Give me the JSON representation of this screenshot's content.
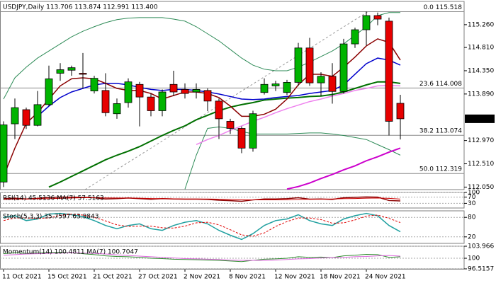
{
  "chart_data": [
    {
      "type": "candlestick",
      "title": "USDJPY,Daily  113.706 113.874 112.991 113.400",
      "categories": [
        "11 Oct 2021",
        null,
        null,
        null,
        "15 Oct 2021",
        null,
        null,
        null,
        "21 Oct 2021",
        null,
        null,
        null,
        "27 Oct 2021",
        null,
        null,
        null,
        "2 Nov 2021",
        null,
        null,
        null,
        "8 Nov 2021",
        null,
        null,
        null,
        "12 Nov 2021",
        null,
        null,
        null,
        "18 Nov 2021",
        null,
        null,
        null,
        "24 Nov 2021",
        null,
        null,
        null
      ],
      "open": [
        112.15,
        113.3,
        113.58,
        113.27,
        113.68,
        114.3,
        114.36,
        114.3,
        113.95,
        113.96,
        113.5,
        113.72,
        114.08,
        113.83,
        113.56,
        114.08,
        113.98,
        113.93,
        113.96,
        113.75,
        113.35,
        113.21,
        112.82,
        113.92,
        114.05,
        113.92,
        114.12,
        114.8,
        114.11,
        114.24,
        113.94,
        114.88,
        115.16,
        115.44,
        115.33,
        113.706
      ],
      "high": [
        113.35,
        113.8,
        113.62,
        113.95,
        114.45,
        114.5,
        114.45,
        114.7,
        114.25,
        114.3,
        113.8,
        114.2,
        114.13,
        113.9,
        113.98,
        114.35,
        114.1,
        114.1,
        114.0,
        113.8,
        113.4,
        113.25,
        113.56,
        114.2,
        114.15,
        114.17,
        114.9,
        115.0,
        114.32,
        114.5,
        114.98,
        115.2,
        115.52,
        115.5,
        115.4,
        113.874
      ],
      "low": [
        112.05,
        113.0,
        113.2,
        113.25,
        113.65,
        114.15,
        114.25,
        114.0,
        113.9,
        113.45,
        113.4,
        113.62,
        113.25,
        113.45,
        113.45,
        113.85,
        113.8,
        113.8,
        113.55,
        113.0,
        113.1,
        112.72,
        112.75,
        113.88,
        113.95,
        113.87,
        114.05,
        114.05,
        113.85,
        113.7,
        113.9,
        114.8,
        114.85,
        115.25,
        113.07,
        112.991
      ],
      "close": [
        113.28,
        113.62,
        113.27,
        113.68,
        114.19,
        114.37,
        114.41,
        114.28,
        114.2,
        113.52,
        113.7,
        114.13,
        113.83,
        113.56,
        113.93,
        113.93,
        113.9,
        113.98,
        113.75,
        113.4,
        113.21,
        112.82,
        113.5,
        114.08,
        114.09,
        114.12,
        114.8,
        114.11,
        114.24,
        113.94,
        114.88,
        115.16,
        115.44,
        115.37,
        113.35,
        113.4
      ],
      "up_color": "#00b400",
      "down_color": "#e60000",
      "series": [
        {
          "color": "#2e8b57",
          "width": 1,
          "values": [
            113.79,
            114.21,
            114.42,
            114.6,
            114.74,
            114.88,
            115.02,
            115.13,
            115.22,
            115.3,
            115.36,
            115.39,
            115.4,
            115.4,
            115.4,
            115.37,
            115.33,
            115.22,
            115.08,
            114.94,
            114.77,
            114.6,
            114.46,
            114.38,
            114.35,
            114.35,
            114.42,
            114.52,
            114.63,
            114.74,
            114.88,
            115.05,
            115.22,
            115.44,
            115.5,
            115.5
          ]
        },
        {
          "color": "#2e8b57",
          "width": 1,
          "values": [
            null,
            null,
            null,
            null,
            null,
            null,
            null,
            null,
            null,
            null,
            null,
            null,
            null,
            null,
            null,
            null,
            112.01,
            112.68,
            113.21,
            113.24,
            113.21,
            113.15,
            113.1,
            113.1,
            113.1,
            113.1,
            113.11,
            113.12,
            113.12,
            113.1,
            113.07,
            113.03,
            112.99,
            112.89,
            112.79,
            112.68
          ]
        },
        {
          "color": "#cc00cc",
          "width": 2,
          "values": [
            null,
            null,
            null,
            null,
            null,
            null,
            null,
            null,
            null,
            null,
            null,
            null,
            null,
            null,
            null,
            null,
            null,
            null,
            null,
            null,
            null,
            null,
            null,
            null,
            null,
            112.01,
            112.06,
            112.13,
            112.22,
            112.3,
            112.39,
            112.47,
            112.57,
            112.65,
            112.74,
            112.82
          ]
        },
        {
          "color": "#ee82ee",
          "width": 1.5,
          "values": [
            null,
            null,
            null,
            null,
            null,
            null,
            null,
            null,
            null,
            null,
            null,
            null,
            null,
            null,
            null,
            null,
            null,
            112.89,
            112.99,
            113.07,
            113.17,
            113.26,
            113.35,
            113.43,
            113.52,
            113.6,
            113.67,
            113.74,
            113.79,
            113.85,
            113.9,
            113.96,
            114.0,
            114.05,
            114.06,
            114.05
          ]
        },
        {
          "color": "#007000",
          "width": 2,
          "values": [
            null,
            null,
            null,
            null,
            112.05,
            112.15,
            112.26,
            112.37,
            112.48,
            112.59,
            112.68,
            112.76,
            112.85,
            112.96,
            113.07,
            113.17,
            113.26,
            113.38,
            113.47,
            113.56,
            113.63,
            113.68,
            113.72,
            113.77,
            113.79,
            113.81,
            113.82,
            113.84,
            113.85,
            113.88,
            113.93,
            114.0,
            114.07,
            114.13,
            114.13,
            114.1
          ]
        },
        {
          "color": "#0000cc",
          "width": 1.5,
          "values": [
            null,
            null,
            null,
            113.45,
            113.65,
            113.82,
            113.93,
            114.0,
            114.07,
            114.1,
            114.1,
            114.07,
            114.02,
            113.98,
            113.96,
            113.98,
            113.98,
            113.96,
            113.93,
            113.89,
            113.84,
            113.79,
            113.78,
            113.79,
            113.82,
            113.84,
            113.86,
            113.9,
            113.93,
            113.96,
            114.07,
            114.28,
            114.49,
            114.6,
            114.56,
            114.46
          ]
        },
        {
          "color": "#8b0000",
          "width": 1.5,
          "values": [
            112.26,
            112.82,
            113.31,
            113.52,
            113.79,
            114.05,
            114.19,
            114.21,
            114.19,
            114.1,
            114.0,
            113.96,
            113.96,
            113.9,
            113.79,
            113.86,
            113.93,
            113.93,
            113.9,
            113.82,
            113.65,
            113.45,
            113.45,
            113.49,
            113.59,
            113.79,
            114.07,
            114.28,
            114.28,
            114.24,
            114.42,
            114.62,
            114.84,
            114.98,
            114.91,
            114.56
          ]
        }
      ],
      "fib_levels": [
        {
          "value": 115.518,
          "label": "0.0 115.518"
        },
        {
          "value": 114.008,
          "label": "23.6 114.008"
        },
        {
          "value": 113.074,
          "label": "38.2 113.074"
        },
        {
          "value": 112.319,
          "label": "50.0 112.319"
        }
      ],
      "current_price": {
        "value": 113.4,
        "label": "113.400"
      },
      "ylim": [
        112.0,
        115.72
      ],
      "yticks": [
        {
          "value": 115.26,
          "label": "115.260"
        },
        {
          "value": 114.81,
          "label": "114.810"
        },
        {
          "value": 114.35,
          "label": "114.350"
        },
        {
          "value": 113.89,
          "label": "113.890"
        },
        {
          "value": 112.97,
          "label": "112.970"
        },
        {
          "value": 112.51,
          "label": "112.510"
        },
        {
          "value": 112.05,
          "label": "112.050"
        }
      ],
      "grid": false
    },
    {
      "type": "line",
      "title": "RSI(14) 45.5136  MA(7) 57.5163",
      "ylim": [
        0,
        100
      ],
      "yticks": [
        30,
        70,
        100
      ],
      "grid": true,
      "series": [
        {
          "color": "#8b0000",
          "width": 1.5,
          "values": [
            60,
            63,
            58,
            62,
            68,
            70,
            70,
            69,
            66,
            58,
            60,
            64,
            60,
            56,
            60,
            58,
            57,
            57,
            55,
            50,
            47,
            43,
            52,
            58,
            58,
            60,
            66,
            57,
            58,
            55,
            66,
            69,
            71,
            70,
            48,
            45.5136
          ]
        },
        {
          "color": "#cc0000",
          "width": 1,
          "values": [
            55,
            57,
            58,
            59,
            60,
            62,
            64,
            66,
            66,
            65,
            64,
            64,
            63,
            61,
            60,
            59,
            58,
            58,
            58,
            57,
            55,
            53,
            52,
            52,
            52,
            53,
            55,
            56,
            57,
            58,
            60,
            61,
            63,
            64,
            62,
            57.5163
          ]
        }
      ]
    },
    {
      "type": "line",
      "title": "Stoch(5,3,3) 35.7597 63.9843",
      "ylim": [
        0,
        100
      ],
      "yticks": [
        20,
        80
      ],
      "grid": true,
      "series": [
        {
          "color": "#20a0a0",
          "width": 1.5,
          "values": [
            80,
            85,
            70,
            75,
            90,
            92,
            88,
            82,
            70,
            55,
            45,
            55,
            60,
            45,
            40,
            55,
            65,
            70,
            60,
            40,
            25,
            12,
            30,
            55,
            70,
            75,
            88,
            70,
            60,
            55,
            75,
            85,
            92,
            85,
            55,
            35.7597
          ]
        },
        {
          "color": "#e00000",
          "width": 1,
          "dash": true,
          "values": [
            70,
            78,
            78,
            77,
            78,
            86,
            90,
            87,
            80,
            69,
            57,
            52,
            53,
            53,
            48,
            47,
            53,
            63,
            65,
            57,
            42,
            26,
            22,
            32,
            52,
            67,
            78,
            78,
            73,
            62,
            63,
            72,
            84,
            87,
            77,
            63.9843
          ]
        }
      ]
    },
    {
      "type": "line",
      "title": "Momentum(14) 100.4811  MA(7) 100.7047",
      "ylim": [
        96.5157,
        103.966
      ],
      "yticks": [
        96.5157,
        100,
        103.966
      ],
      "grid": true,
      "series": [
        {
          "color": "#2e8b2e",
          "width": 1,
          "values": [
            101.5,
            101.8,
            101.6,
            101.7,
            101.9,
            102.0,
            101.8,
            101.5,
            101.2,
            100.8,
            100.6,
            100.5,
            100.3,
            100.0,
            99.9,
            99.7,
            99.6,
            99.5,
            99.4,
            99.3,
            99.1,
            98.9,
            99.3,
            99.7,
            99.8,
            100.0,
            100.5,
            100.3,
            100.4,
            100.2,
            100.8,
            101.0,
            101.3,
            101.2,
            100.3,
            100.4811
          ]
        },
        {
          "color": "#dd66dd",
          "width": 1,
          "values": [
            101.0,
            101.2,
            101.4,
            101.5,
            101.6,
            101.7,
            101.8,
            101.7,
            101.6,
            101.4,
            101.1,
            100.9,
            100.7,
            100.5,
            100.3,
            100.1,
            99.9,
            99.8,
            99.7,
            99.6,
            99.4,
            99.3,
            99.3,
            99.3,
            99.4,
            99.6,
            99.8,
            99.9,
            100.1,
            100.2,
            100.3,
            100.5,
            100.6,
            100.8,
            100.9,
            100.7047
          ]
        }
      ]
    }
  ]
}
